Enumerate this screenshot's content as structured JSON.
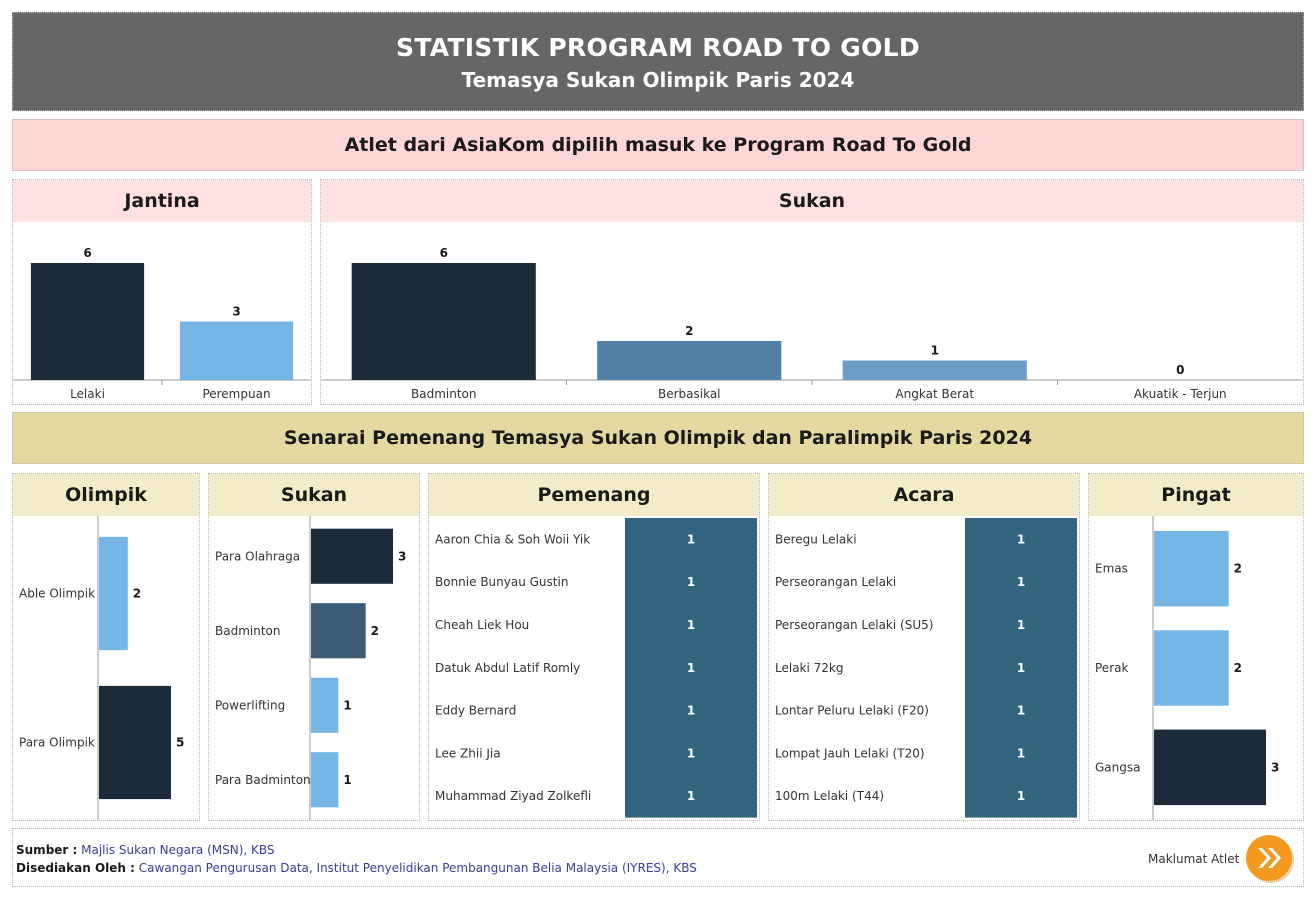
{
  "header": {
    "title": "STATISTIK PROGRAM ROAD TO GOLD",
    "subtitle": "Temasya Sukan Olimpik Paris 2024"
  },
  "section1": {
    "title": "Atlet dari AsiaKom dipilih masuk ke Program Road To Gold"
  },
  "section2": {
    "title": "Senarai Pemenang Temasya Sukan Olimpik dan Paralimpik Paris 2024"
  },
  "colors": {
    "dark": "#1c2b39",
    "mid": "#5181a6",
    "light": "#76b6e6",
    "steel": "#3d5c7a",
    "teal": "#33647f"
  },
  "chart_data": [
    {
      "id": "jantina",
      "type": "bar",
      "title": "Jantina",
      "categories": [
        "Lelaki",
        "Perempuan"
      ],
      "values": [
        6,
        3
      ],
      "colors": [
        "#1c2b39",
        "#76b6e6"
      ]
    },
    {
      "id": "sukan_top",
      "type": "bar",
      "title": "Sukan",
      "categories": [
        "Badminton",
        "Berbasikal",
        "Angkat Berat",
        "Akuatik - Terjun"
      ],
      "values": [
        6,
        2,
        1,
        0
      ],
      "colors": [
        "#1c2b39",
        "#5181a6",
        "#6b9dc7",
        "#76b6e6"
      ]
    },
    {
      "id": "olimpik",
      "type": "bar",
      "orientation": "horizontal",
      "title": "Olimpik",
      "categories": [
        "Able Olimpik",
        "Para Olimpik"
      ],
      "values": [
        2,
        5
      ],
      "colors": [
        "#76b6e6",
        "#1c2b39"
      ]
    },
    {
      "id": "sukan_bottom",
      "type": "bar",
      "orientation": "horizontal",
      "title": "Sukan",
      "categories": [
        "Para Olahraga",
        "Badminton",
        "Powerlifting",
        "Para Badminton"
      ],
      "values": [
        3,
        2,
        1,
        1
      ],
      "colors": [
        "#1c2b39",
        "#3d5c7a",
        "#76b6e6",
        "#76b6e6"
      ]
    },
    {
      "id": "pemenang",
      "type": "table",
      "title": "Pemenang",
      "rows": [
        {
          "label": "Aaron Chia & Soh Woii Yik",
          "value": 1
        },
        {
          "label": "Bonnie Bunyau Gustin",
          "value": 1
        },
        {
          "label": "Cheah Liek Hou",
          "value": 1
        },
        {
          "label": "Datuk Abdul Latif Romly",
          "value": 1
        },
        {
          "label": "Eddy Bernard",
          "value": 1
        },
        {
          "label": "Lee Zhii Jia",
          "value": 1
        },
        {
          "label": "Muhammad Ziyad Zolkefli",
          "value": 1
        }
      ]
    },
    {
      "id": "acara",
      "type": "table",
      "title": "Acara",
      "rows": [
        {
          "label": "Beregu Lelaki",
          "value": 1
        },
        {
          "label": "Perseorangan Lelaki",
          "value": 1
        },
        {
          "label": "Perseorangan Lelaki (SU5)",
          "value": 1
        },
        {
          "label": "Lelaki 72kg",
          "value": 1
        },
        {
          "label": "Lontar Peluru Lelaki (F20)",
          "value": 1
        },
        {
          "label": "Lompat Jauh Lelaki (T20)",
          "value": 1
        },
        {
          "label": "100m Lelaki (T44)",
          "value": 1
        }
      ]
    },
    {
      "id": "pingat",
      "type": "bar",
      "orientation": "horizontal",
      "title": "Pingat",
      "categories": [
        "Emas",
        "Perak",
        "Gangsa"
      ],
      "values": [
        2,
        2,
        3
      ],
      "colors": [
        "#76b6e6",
        "#76b6e6",
        "#1c2b39"
      ]
    }
  ],
  "footer": {
    "source_label": "Sumber :",
    "source_value": "Majlis Sukan Negara (MSN), KBS",
    "prepared_label": "Disediakan Oleh :",
    "prepared_value": "Cawangan Pengurusan Data, Institut Penyelidikan Pembangunan Belia Malaysia (IYRES), KBS",
    "link_label": "Maklumat Atlet",
    "link_icon": "double-chevron-right-icon"
  }
}
